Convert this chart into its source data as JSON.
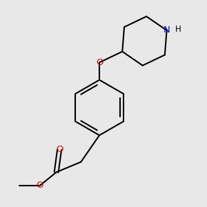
{
  "background_color": "#e8e8e8",
  "bond_color": "#000000",
  "oxygen_color": "#dd0000",
  "nitrogen_color": "#0000cc",
  "line_width": 1.5,
  "font_size_atom": 9.5,
  "font_size_H": 8.5,
  "figsize": [
    3.0,
    3.0
  ],
  "dpi": 100,
  "xlim": [
    0,
    10
  ],
  "ylim": [
    0,
    10
  ]
}
